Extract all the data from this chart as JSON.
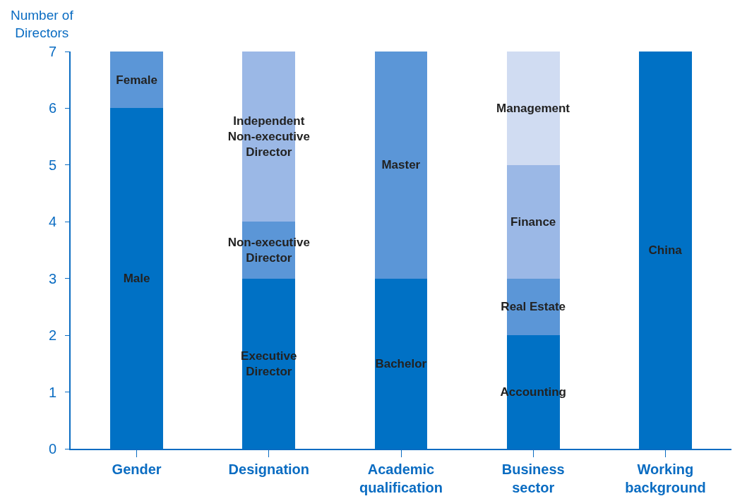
{
  "chart_data": {
    "type": "bar",
    "stacked": true,
    "ylabel": "Number of\nDirectors",
    "categories": [
      "Gender",
      "Designation",
      "Academic\nqualification",
      "Business\nsector",
      "Working\nbackground"
    ],
    "series": [
      {
        "name": "Male",
        "color": "#0071c5",
        "values": [
          6,
          null,
          null,
          null,
          null
        ]
      },
      {
        "name": "Female",
        "color": "#5b96d7",
        "values": [
          1,
          null,
          null,
          null,
          null
        ]
      },
      {
        "name": "Executive\nDirector",
        "color": "#0071c5",
        "values": [
          null,
          3,
          null,
          null,
          null
        ]
      },
      {
        "name": "Non-executive\nDirector",
        "color": "#5b96d7",
        "values": [
          null,
          1,
          null,
          null,
          null
        ]
      },
      {
        "name": "Independent\nNon-executive\nDirector",
        "color": "#9bb8e6",
        "values": [
          null,
          3,
          null,
          null,
          null
        ]
      },
      {
        "name": "Bachelor",
        "color": "#0071c5",
        "values": [
          null,
          null,
          3,
          null,
          null
        ]
      },
      {
        "name": "Master",
        "color": "#5b96d7",
        "values": [
          null,
          null,
          4,
          null,
          null
        ]
      },
      {
        "name": "Accounting",
        "color": "#0071c5",
        "values": [
          null,
          null,
          null,
          2,
          null
        ]
      },
      {
        "name": "Real Estate",
        "color": "#5b96d7",
        "values": [
          null,
          null,
          null,
          1,
          null
        ]
      },
      {
        "name": "Finance",
        "color": "#9bb8e6",
        "values": [
          null,
          null,
          null,
          2,
          null
        ]
      },
      {
        "name": "Management",
        "color": "#d0dcf2",
        "values": [
          null,
          null,
          null,
          2,
          null
        ]
      },
      {
        "name": "China",
        "color": "#0071c5",
        "values": [
          null,
          null,
          null,
          null,
          7
        ]
      }
    ],
    "ylim": [
      0,
      7
    ],
    "yticks": [
      0,
      1,
      2,
      3,
      4,
      5,
      6,
      7
    ]
  }
}
